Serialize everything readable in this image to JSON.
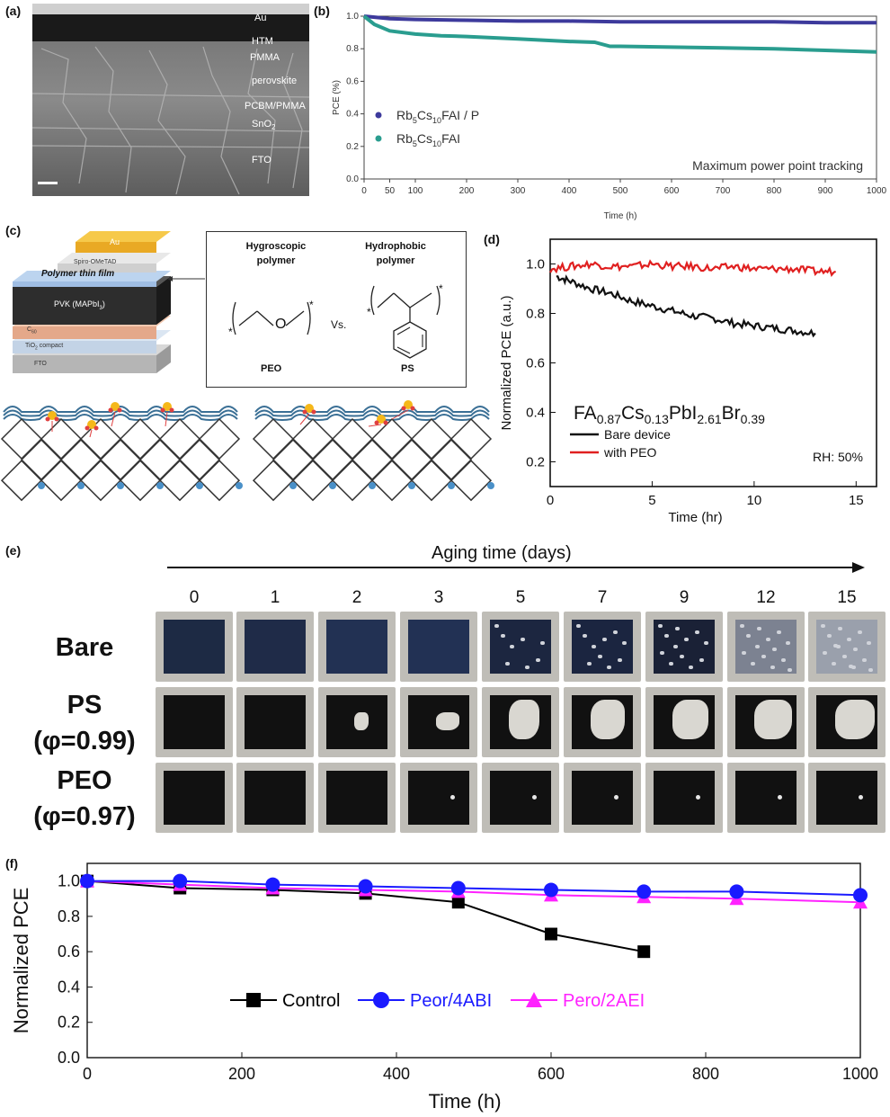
{
  "panel_labels": {
    "a": "(a)",
    "b": "(b)",
    "c": "(c)",
    "d": "(d)",
    "e": "(e)",
    "f": "(f)"
  },
  "panel_a": {
    "layers": [
      "Au",
      "HTM",
      "PMMA",
      "perovskite",
      "PCBM/PMMA",
      "SnO",
      "FTO"
    ],
    "sno_sub": "2"
  },
  "panel_c": {
    "stack_layers": [
      "Au",
      "Spiro-OMeTAD",
      "Polymer thin film",
      "PVK (MAPbI",
      "C",
      "TiO",
      "compact",
      "FTO"
    ],
    "pvk_sub": "3",
    "pvk_close": ")",
    "c_sub": "60",
    "tio_sub": "2",
    "hygroscopic_l1": "Hygroscopic",
    "hygroscopic_l2": "polymer",
    "hydrophobic_l1": "Hydrophobic",
    "hydrophobic_l2": "polymer",
    "vs": "Vs.",
    "peo": "PEO",
    "ps": "PS",
    "oxygen": "O",
    "star": "*"
  },
  "panel_e": {
    "title": "Aging time (days)",
    "days": [
      "0",
      "1",
      "2",
      "3",
      "5",
      "7",
      "9",
      "12",
      "15"
    ],
    "rows": [
      {
        "l1": "Bare",
        "l2": ""
      },
      {
        "l1": "PS",
        "l2": "(φ=0.99)"
      },
      {
        "l1": "PEO",
        "l2": "(φ=0.97)"
      }
    ]
  },
  "chart_data": [
    {
      "panel": "b",
      "type": "line",
      "ylabel": "PCE (%)",
      "xlabel": "Time (h)",
      "xlim": [
        0,
        1000
      ],
      "ylim": [
        0.0,
        1.0
      ],
      "xticks": [
        "0",
        "50",
        "100",
        "200",
        "300",
        "400",
        "500",
        "600",
        "700",
        "800",
        "900",
        "1000"
      ],
      "yticks": [
        "0.0",
        "0.2",
        "0.4",
        "0.6",
        "0.8",
        "1.0"
      ],
      "annotation": "Maximum power point tracking",
      "series": [
        {
          "name": "Rb5Cs10FAI / P",
          "color": "#3d3a9c",
          "x": [
            0,
            50,
            100,
            200,
            300,
            400,
            500,
            600,
            700,
            800,
            900,
            1000
          ],
          "y": [
            1.0,
            0.985,
            0.98,
            0.975,
            0.97,
            0.97,
            0.965,
            0.965,
            0.965,
            0.965,
            0.96,
            0.96
          ]
        },
        {
          "name": "Rb5Cs10FAI",
          "color": "#2a9d8f",
          "x": [
            0,
            20,
            50,
            100,
            150,
            200,
            300,
            400,
            450,
            480,
            500,
            600,
            700,
            800,
            900,
            1000
          ],
          "y": [
            1.0,
            0.95,
            0.91,
            0.89,
            0.88,
            0.875,
            0.86,
            0.845,
            0.84,
            0.815,
            0.815,
            0.81,
            0.805,
            0.8,
            0.79,
            0.78
          ]
        }
      ]
    },
    {
      "panel": "d",
      "type": "line",
      "ylabel": "Normalized PCE (a.u.)",
      "xlabel": "Time (hr)",
      "xlim": [
        0,
        16
      ],
      "ylim": [
        0.1,
        1.1
      ],
      "xticks": [
        "0",
        "5",
        "10",
        "15"
      ],
      "yticks": [
        "0.2",
        "0.4",
        "0.6",
        "0.8",
        "1.0"
      ],
      "formula": {
        "parts": [
          "FA",
          "0.87",
          "Cs",
          "0.13",
          "PbI",
          "2.61",
          "Br",
          "0.39"
        ]
      },
      "annotation": "RH: 50%",
      "series": [
        {
          "name": "Bare device",
          "color": "#111111",
          "x": [
            0.3,
            1,
            2,
            3,
            4,
            5,
            6,
            7,
            8,
            9,
            10,
            11,
            12,
            13
          ],
          "y": [
            0.95,
            0.93,
            0.9,
            0.88,
            0.85,
            0.83,
            0.81,
            0.79,
            0.78,
            0.76,
            0.75,
            0.74,
            0.73,
            0.72
          ]
        },
        {
          "name": "with PEO",
          "color": "#e02020",
          "x": [
            0,
            1,
            2,
            3,
            4,
            5,
            6,
            7,
            8,
            9,
            10,
            11,
            12,
            13,
            14
          ],
          "y": [
            0.98,
            0.99,
            1.0,
            0.99,
            0.99,
            1.0,
            0.99,
            0.99,
            0.98,
            0.99,
            0.98,
            0.98,
            0.98,
            0.97,
            0.97
          ]
        }
      ]
    },
    {
      "panel": "f",
      "type": "line",
      "ylabel": "Normalized PCE",
      "xlabel": "Time (h)",
      "xlim": [
        0,
        1000
      ],
      "ylim": [
        0.0,
        1.1
      ],
      "xticks": [
        "0",
        "200",
        "400",
        "600",
        "800",
        "1000"
      ],
      "yticks": [
        "0.0",
        "0.2",
        "0.4",
        "0.6",
        "0.8",
        "1.0"
      ],
      "series": [
        {
          "name": "Control",
          "color": "#000000",
          "marker": "square",
          "x": [
            0,
            120,
            240,
            360,
            480,
            600,
            720
          ],
          "y": [
            1.0,
            0.96,
            0.95,
            0.93,
            0.88,
            0.7,
            0.6
          ]
        },
        {
          "name": "Peor/4ABI",
          "color": "#1a1aff",
          "marker": "circle",
          "x": [
            0,
            120,
            240,
            360,
            480,
            600,
            720,
            840,
            1000
          ],
          "y": [
            1.0,
            1.0,
            0.98,
            0.97,
            0.96,
            0.95,
            0.94,
            0.94,
            0.92
          ]
        },
        {
          "name": "Pero/2AEI",
          "color": "#ff22ff",
          "marker": "triangle",
          "x": [
            0,
            120,
            240,
            360,
            480,
            600,
            720,
            840,
            1000
          ],
          "y": [
            1.0,
            0.98,
            0.96,
            0.95,
            0.94,
            0.92,
            0.91,
            0.9,
            0.88
          ]
        }
      ]
    }
  ]
}
